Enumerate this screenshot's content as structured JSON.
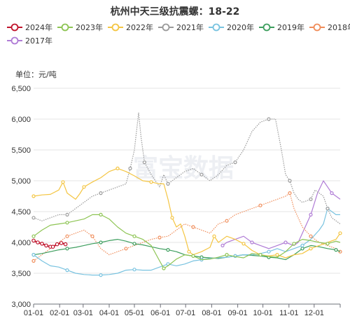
{
  "chart_data": {
    "type": "line",
    "title": "杭州中天三级抗震螺：18-22",
    "unit_label": "单位：元/吨",
    "watermark": "富宝数据",
    "ylim": [
      3000,
      6500
    ],
    "y_ticks": [
      "3,000",
      "3,500",
      "4,000",
      "4,500",
      "5,000",
      "5,500",
      "6,000",
      "6,500"
    ],
    "y_tick_values": [
      3000,
      3500,
      4000,
      4500,
      5000,
      5500,
      6000,
      6500
    ],
    "x_ticks": [
      "01-01",
      "02-01",
      "03-01",
      "04-01",
      "05-01",
      "06-01",
      "07-01",
      "08-01",
      "09-01",
      "10-01",
      "11-01",
      "12-01"
    ],
    "xlim": [
      0,
      365
    ],
    "grid": "horizontal",
    "legend_position": "top",
    "series": [
      {
        "name": "2024年",
        "color": "#c0142c",
        "marker": "circle",
        "line_style": "solid",
        "points": [
          [
            0,
            4030
          ],
          [
            5,
            4000
          ],
          [
            10,
            3980
          ],
          [
            15,
            3950
          ],
          [
            20,
            3930
          ],
          [
            23,
            3930
          ],
          [
            28,
            3970
          ],
          [
            33,
            3990
          ],
          [
            38,
            3970
          ]
        ]
      },
      {
        "name": "2023年",
        "color": "#8dc453",
        "marker": "circle",
        "line_style": "solid",
        "points": [
          [
            0,
            4100
          ],
          [
            10,
            4200
          ],
          [
            20,
            4280
          ],
          [
            30,
            4300
          ],
          [
            40,
            4320
          ],
          [
            50,
            4350
          ],
          [
            60,
            4380
          ],
          [
            70,
            4450
          ],
          [
            80,
            4450
          ],
          [
            90,
            4380
          ],
          [
            100,
            4250
          ],
          [
            110,
            4150
          ],
          [
            120,
            4100
          ],
          [
            130,
            4050
          ],
          [
            140,
            3950
          ],
          [
            150,
            3700
          ],
          [
            155,
            3580
          ],
          [
            160,
            3620
          ],
          [
            170,
            3730
          ],
          [
            180,
            3800
          ],
          [
            190,
            3780
          ],
          [
            200,
            3720
          ],
          [
            210,
            3730
          ],
          [
            220,
            3760
          ],
          [
            230,
            3800
          ],
          [
            240,
            3770
          ],
          [
            250,
            3750
          ],
          [
            260,
            3820
          ],
          [
            270,
            3800
          ],
          [
            280,
            3770
          ],
          [
            290,
            3760
          ],
          [
            300,
            3850
          ],
          [
            310,
            3980
          ],
          [
            320,
            4050
          ],
          [
            330,
            4030
          ],
          [
            340,
            4000
          ],
          [
            350,
            3980
          ],
          [
            360,
            4020
          ],
          [
            365,
            4000
          ]
        ]
      },
      {
        "name": "2022年",
        "color": "#f4c542",
        "marker": "circle",
        "line_style": "solid",
        "points": [
          [
            0,
            4750
          ],
          [
            10,
            4770
          ],
          [
            20,
            4780
          ],
          [
            30,
            4850
          ],
          [
            35,
            4980
          ],
          [
            40,
            4800
          ],
          [
            50,
            4700
          ],
          [
            55,
            4790
          ],
          [
            60,
            4900
          ],
          [
            70,
            4980
          ],
          [
            80,
            5050
          ],
          [
            90,
            5150
          ],
          [
            100,
            5200
          ],
          [
            110,
            5150
          ],
          [
            120,
            5080
          ],
          [
            130,
            5000
          ],
          [
            140,
            4980
          ],
          [
            150,
            4950
          ],
          [
            155,
            4950
          ],
          [
            160,
            4700
          ],
          [
            165,
            4400
          ],
          [
            170,
            4250
          ],
          [
            175,
            4300
          ],
          [
            180,
            4100
          ],
          [
            185,
            3850
          ],
          [
            190,
            3800
          ],
          [
            200,
            3850
          ],
          [
            210,
            3920
          ],
          [
            215,
            4100
          ],
          [
            220,
            4000
          ],
          [
            230,
            4100
          ],
          [
            240,
            4050
          ],
          [
            250,
            3980
          ],
          [
            260,
            3870
          ],
          [
            270,
            3800
          ],
          [
            280,
            3780
          ],
          [
            290,
            3800
          ],
          [
            300,
            3750
          ],
          [
            310,
            3800
          ],
          [
            320,
            3820
          ],
          [
            330,
            3900
          ],
          [
            340,
            3950
          ],
          [
            350,
            4000
          ],
          [
            360,
            4050
          ],
          [
            365,
            4150
          ]
        ]
      },
      {
        "name": "2021年",
        "color": "#9a9a9a",
        "marker": "circle",
        "line_style": "dotted",
        "points": [
          [
            0,
            4400
          ],
          [
            10,
            4350
          ],
          [
            20,
            4400
          ],
          [
            30,
            4450
          ],
          [
            40,
            4450
          ],
          [
            50,
            4550
          ],
          [
            60,
            4650
          ],
          [
            70,
            4750
          ],
          [
            80,
            4800
          ],
          [
            90,
            4850
          ],
          [
            100,
            4900
          ],
          [
            110,
            4950
          ],
          [
            115,
            5200
          ],
          [
            120,
            5500
          ],
          [
            125,
            6100
          ],
          [
            128,
            5700
          ],
          [
            132,
            5300
          ],
          [
            140,
            5100
          ],
          [
            150,
            4900
          ],
          [
            155,
            5100
          ],
          [
            160,
            4950
          ],
          [
            170,
            5050
          ],
          [
            180,
            5150
          ],
          [
            190,
            5200
          ],
          [
            200,
            5100
          ],
          [
            210,
            5000
          ],
          [
            220,
            5100
          ],
          [
            230,
            5250
          ],
          [
            240,
            5300
          ],
          [
            250,
            5500
          ],
          [
            260,
            5800
          ],
          [
            270,
            5950
          ],
          [
            280,
            6000
          ],
          [
            288,
            6000
          ],
          [
            295,
            5500
          ],
          [
            300,
            5100
          ],
          [
            305,
            5000
          ],
          [
            310,
            4800
          ],
          [
            315,
            4700
          ],
          [
            320,
            4650
          ],
          [
            330,
            4700
          ],
          [
            335,
            4850
          ],
          [
            340,
            4800
          ],
          [
            345,
            4750
          ],
          [
            350,
            4550
          ],
          [
            355,
            4400
          ],
          [
            360,
            4350
          ],
          [
            365,
            4300
          ]
        ]
      },
      {
        "name": "2020年",
        "color": "#79c3e0",
        "marker": "circle",
        "line_style": "solid",
        "points": [
          [
            0,
            3800
          ],
          [
            10,
            3700
          ],
          [
            20,
            3620
          ],
          [
            30,
            3600
          ],
          [
            40,
            3550
          ],
          [
            50,
            3500
          ],
          [
            60,
            3480
          ],
          [
            70,
            3470
          ],
          [
            80,
            3470
          ],
          [
            90,
            3480
          ],
          [
            100,
            3500
          ],
          [
            110,
            3550
          ],
          [
            120,
            3560
          ],
          [
            130,
            3550
          ],
          [
            140,
            3550
          ],
          [
            150,
            3600
          ],
          [
            160,
            3650
          ],
          [
            170,
            3620
          ],
          [
            180,
            3650
          ],
          [
            190,
            3700
          ],
          [
            200,
            3720
          ],
          [
            210,
            3740
          ],
          [
            220,
            3750
          ],
          [
            230,
            3760
          ],
          [
            240,
            3780
          ],
          [
            250,
            3800
          ],
          [
            260,
            3800
          ],
          [
            270,
            3820
          ],
          [
            280,
            3850
          ],
          [
            290,
            3900
          ],
          [
            300,
            3850
          ],
          [
            310,
            3900
          ],
          [
            320,
            3950
          ],
          [
            330,
            4050
          ],
          [
            340,
            4200
          ],
          [
            345,
            4300
          ],
          [
            350,
            4550
          ],
          [
            355,
            4500
          ],
          [
            360,
            4450
          ],
          [
            365,
            4450
          ]
        ]
      },
      {
        "name": "2019年",
        "color": "#3d9e5e",
        "marker": "circle",
        "line_style": "solid",
        "points": [
          [
            0,
            3800
          ],
          [
            10,
            3820
          ],
          [
            20,
            3850
          ],
          [
            30,
            3880
          ],
          [
            40,
            3900
          ],
          [
            50,
            3920
          ],
          [
            60,
            3950
          ],
          [
            70,
            3980
          ],
          [
            80,
            4000
          ],
          [
            90,
            4030
          ],
          [
            100,
            4050
          ],
          [
            110,
            4020
          ],
          [
            120,
            3980
          ],
          [
            130,
            3960
          ],
          [
            140,
            3930
          ],
          [
            150,
            3900
          ],
          [
            160,
            3880
          ],
          [
            170,
            3850
          ],
          [
            180,
            3800
          ],
          [
            190,
            3780
          ],
          [
            200,
            3760
          ],
          [
            210,
            3750
          ],
          [
            220,
            3740
          ],
          [
            230,
            3760
          ],
          [
            240,
            3780
          ],
          [
            250,
            3800
          ],
          [
            260,
            3790
          ],
          [
            270,
            3780
          ],
          [
            280,
            3760
          ],
          [
            290,
            3750
          ],
          [
            300,
            3720
          ],
          [
            310,
            3800
          ],
          [
            320,
            3900
          ],
          [
            330,
            3950
          ],
          [
            340,
            3930
          ],
          [
            350,
            3900
          ],
          [
            360,
            3880
          ],
          [
            365,
            3850
          ]
        ]
      },
      {
        "name": "2018年",
        "color": "#f08d5a",
        "marker": "circle",
        "line_style": "dotted",
        "points": [
          [
            0,
            3700
          ],
          [
            10,
            3800
          ],
          [
            20,
            3900
          ],
          [
            30,
            4000
          ],
          [
            40,
            4100
          ],
          [
            50,
            4150
          ],
          [
            60,
            4200
          ],
          [
            65,
            4150
          ],
          [
            70,
            4100
          ],
          [
            80,
            3900
          ],
          [
            90,
            3800
          ],
          [
            100,
            3850
          ],
          [
            110,
            3900
          ],
          [
            120,
            3950
          ],
          [
            130,
            4000
          ],
          [
            140,
            4050
          ],
          [
            150,
            4080
          ],
          [
            160,
            4100
          ],
          [
            170,
            4200
          ],
          [
            180,
            4300
          ],
          [
            190,
            4250
          ],
          [
            200,
            4200
          ],
          [
            210,
            4150
          ],
          [
            220,
            4300
          ],
          [
            230,
            4350
          ],
          [
            240,
            4450
          ],
          [
            250,
            4500
          ],
          [
            260,
            4550
          ],
          [
            270,
            4600
          ],
          [
            280,
            4650
          ],
          [
            290,
            4700
          ],
          [
            300,
            4750
          ],
          [
            305,
            4800
          ],
          [
            310,
            4550
          ],
          [
            315,
            4400
          ],
          [
            320,
            4250
          ],
          [
            330,
            4100
          ],
          [
            340,
            4000
          ],
          [
            350,
            3950
          ],
          [
            360,
            3900
          ],
          [
            365,
            3850
          ]
        ]
      },
      {
        "name": "2017年",
        "color": "#b07cd6",
        "marker": "circle",
        "line_style": "solid",
        "points": [
          [
            225,
            3950
          ],
          [
            230,
            4000
          ],
          [
            240,
            4050
          ],
          [
            250,
            4100
          ],
          [
            260,
            4000
          ],
          [
            270,
            3950
          ],
          [
            280,
            3900
          ],
          [
            290,
            3950
          ],
          [
            300,
            4000
          ],
          [
            310,
            3950
          ],
          [
            315,
            4000
          ],
          [
            320,
            4150
          ],
          [
            330,
            4450
          ],
          [
            338,
            4800
          ],
          [
            345,
            5000
          ],
          [
            350,
            4900
          ],
          [
            355,
            4800
          ],
          [
            360,
            4750
          ],
          [
            365,
            4700
          ]
        ]
      }
    ]
  }
}
